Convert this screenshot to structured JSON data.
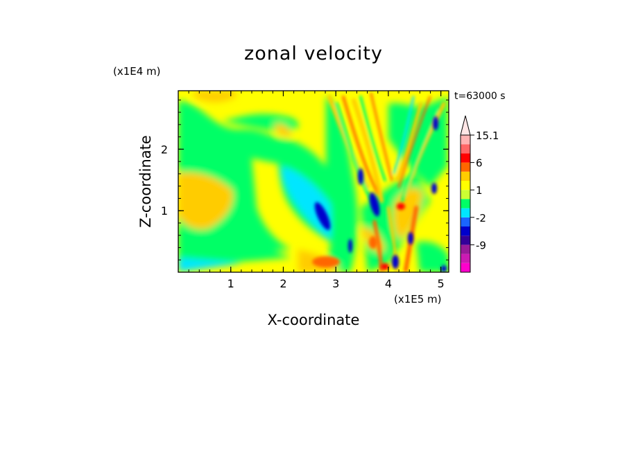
{
  "chart_data": {
    "type": "heatmap",
    "title": "zonal velocity",
    "time_label": "t=63000 s",
    "xlabel": "X-coordinate",
    "ylabel": "Z-coordinate",
    "x_unit_label": "(x1E5 m)",
    "y_unit_label": "(x1E4 m)",
    "xlim": [
      0,
      5.15
    ],
    "ylim": [
      0,
      2.95
    ],
    "x_ticks": [
      1,
      2,
      3,
      4,
      5
    ],
    "y_ticks": [
      1,
      2
    ],
    "x_tick_labels": [
      "1",
      "2",
      "3",
      "4",
      "5"
    ],
    "y_tick_labels": [
      "1",
      "2"
    ],
    "colorbar": {
      "labels": [
        {
          "text": "15.1",
          "level": 15.1
        },
        {
          "text": "6",
          "level": 6
        },
        {
          "text": "1",
          "level": 1
        },
        {
          "text": "-2",
          "level": -2
        },
        {
          "text": "-9",
          "level": -9
        }
      ],
      "levels": [
        -15,
        -12,
        -9,
        -6,
        -3,
        -2,
        -1,
        0,
        1,
        2,
        3,
        6,
        9,
        12,
        15.1
      ],
      "colors": [
        "#ff00cc",
        "#cc1ab3",
        "#991a99",
        "#330099",
        "#0000cc",
        "#1a66ff",
        "#00e6ff",
        "#00ff66",
        "#ccff33",
        "#ffff00",
        "#ffcc00",
        "#ff6600",
        "#ff0000",
        "#ff6666",
        "#ffb3b3",
        "#ffe6e6"
      ]
    },
    "grid": false
  }
}
